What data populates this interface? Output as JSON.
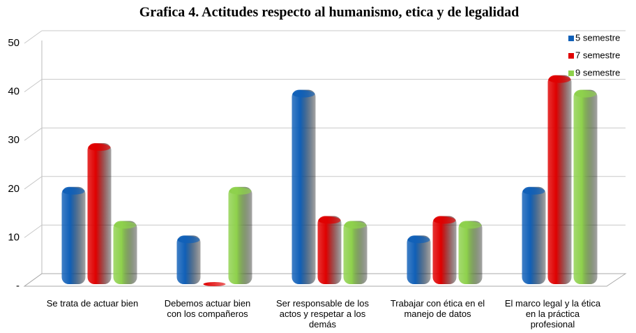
{
  "chart_data": {
    "type": "bar",
    "title": "Grafica 4. Actitudes respecto al humanismo, etica y de legalidad",
    "categories": [
      "Se trata de actuar bien",
      "Debemos actuar bien con los compañeros",
      "Ser responsable de los actos y respetar a los demás",
      "Trabajar con ética en el manejo de datos",
      "El marco legal y la ética en la práctica profesional"
    ],
    "series": [
      {
        "name": "5 semestre",
        "color": "#1060b8",
        "values": [
          20,
          10,
          40,
          10,
          20
        ]
      },
      {
        "name": "7 semestre",
        "color": "#e00000",
        "values": [
          29,
          0,
          14,
          14,
          43
        ]
      },
      {
        "name": "9 semestre",
        "color": "#8ed14c",
        "values": [
          13,
          20,
          13,
          13,
          40
        ]
      }
    ],
    "ylim": [
      0,
      50
    ],
    "yticks": [
      {
        "value": 0,
        "label": "-"
      },
      10,
      20,
      30,
      40,
      50
    ],
    "grid": true,
    "legend": "top-right"
  }
}
